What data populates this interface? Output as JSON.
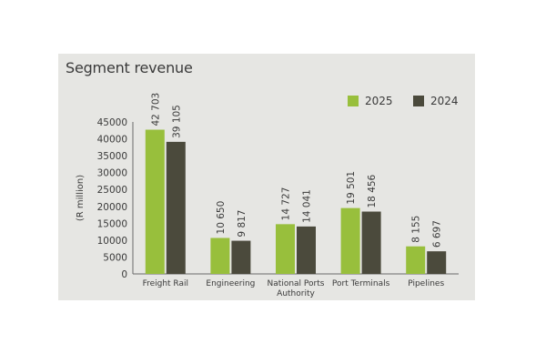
{
  "chart_data": {
    "type": "bar",
    "title": "Segment revenue",
    "ylabel": "(R million)",
    "xlabel": "",
    "ylim": [
      0,
      45000
    ],
    "yticks": [
      "0",
      "5000",
      "10000",
      "15000",
      "20000",
      "25000",
      "30000",
      "35000",
      "40000",
      "45000"
    ],
    "categories": [
      "Freight Rail",
      "Engineering",
      "National Ports Authority",
      "Port Terminals",
      "Pipelines"
    ],
    "category_labels": [
      [
        "Freight Rail"
      ],
      [
        "Engineering"
      ],
      [
        "National Ports",
        "Authority"
      ],
      [
        "Port Terminals"
      ],
      [
        "Pipelines"
      ]
    ],
    "series": [
      {
        "name": "2025",
        "color": "#98bf3c",
        "values": [
          42703,
          10650,
          14727,
          19501,
          8155
        ],
        "labels": [
          "42 703",
          "10 650",
          "14 727",
          "19 501",
          "8 155"
        ]
      },
      {
        "name": "2024",
        "color": "#4b4a3c",
        "values": [
          39105,
          9817,
          14041,
          18456,
          6697
        ],
        "labels": [
          "39 105",
          "9 817",
          "14 041",
          "18 456",
          "6 697"
        ]
      }
    ],
    "grid": false,
    "legend": "top-right"
  }
}
